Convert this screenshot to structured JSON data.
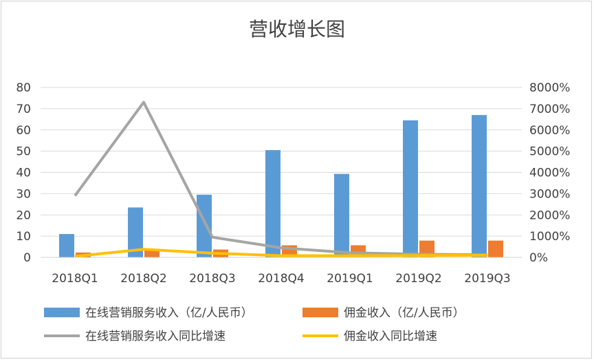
{
  "chart_data": {
    "type": "bar",
    "title": "营收增长图",
    "categories": [
      "2018Q1",
      "2018Q2",
      "2018Q3",
      "2018Q4",
      "2019Q1",
      "2019Q2",
      "2019Q3"
    ],
    "y_left": {
      "ylim": [
        0,
        80
      ],
      "ticks": [
        "0",
        "10",
        "20",
        "30",
        "40",
        "50",
        "60",
        "70",
        "80"
      ]
    },
    "y_right": {
      "ylim": [
        0,
        8000
      ],
      "ticks": [
        "0%",
        "1000%",
        "2000%",
        "3000%",
        "4000%",
        "5000%",
        "6000%",
        "7000%",
        "8000%"
      ]
    },
    "series": [
      {
        "name": "在线营销服务收入（亿/人民币）",
        "kind": "bar",
        "axis": "left",
        "color": "#5B9BD5",
        "values": [
          11,
          23.5,
          29.5,
          50.5,
          39.3,
          64.5,
          67
        ]
      },
      {
        "name": "佣金收入（亿/人民币）",
        "kind": "bar",
        "axis": "left",
        "color": "#ED7D31",
        "values": [
          2.3,
          3.5,
          3.7,
          5.7,
          5.7,
          7.9,
          7.9
        ]
      },
      {
        "name": "在线营销服务收入同比增速",
        "kind": "line",
        "axis": "right",
        "color": "#A5A5A5",
        "values": [
          2900,
          7300,
          950,
          450,
          220,
          150,
          120
        ]
      },
      {
        "name": "佣金收入同比增速",
        "kind": "line",
        "axis": "right",
        "color": "#FFC000",
        "values": [
          50,
          380,
          200,
          80,
          80,
          90,
          100
        ]
      }
    ],
    "grid": true,
    "legend_position": "bottom"
  }
}
